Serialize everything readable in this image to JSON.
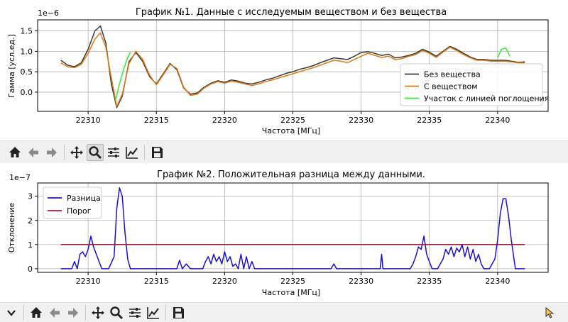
{
  "chart_data": [
    {
      "type": "line",
      "title": "График №1. Данные с исследуемым веществом и без вещества",
      "xlabel": "Частота [МГц]",
      "ylabel": "Гамма [усл.ед.]",
      "y_scale_label": "1e−6",
      "xlim": [
        22306.3,
        22343.7
      ],
      "ylim": [
        -0.47,
        1.77
      ],
      "xticks": [
        22310,
        22315,
        22320,
        22325,
        22330,
        22335,
        22340
      ],
      "yticks": [
        0.0,
        0.5,
        1.0,
        1.5
      ],
      "ytick_labels": [
        "0.0",
        "0.5",
        "1.0",
        "1.5"
      ],
      "grid": true,
      "legend_position": "lower-right",
      "series": [
        {
          "name": "Без вещества",
          "color": "#3a3a3a",
          "x": [
            22308,
            22308.5,
            22309,
            22309.5,
            22310,
            22310.5,
            22310.9,
            22311.3,
            22311.7,
            22312.1,
            22312.5,
            22313,
            22313.5,
            22314,
            22314.5,
            22315,
            22315.5,
            22316,
            22316.5,
            22317,
            22317.5,
            22318,
            22318.5,
            22319,
            22319.5,
            22320,
            22320.5,
            22321,
            22321.5,
            22322,
            22322.5,
            22323,
            22323.5,
            22324,
            22324.5,
            22325,
            22325.5,
            22326,
            22326.5,
            22327,
            22327.5,
            22328,
            22328.5,
            22329,
            22329.5,
            22330,
            22330.5,
            22331,
            22331.5,
            22332,
            22332.5,
            22333,
            22333.5,
            22334,
            22334.5,
            22335,
            22335.5,
            22336,
            22336.5,
            22337,
            22337.5,
            22338,
            22338.5,
            22339,
            22339.5,
            22340,
            22340.5,
            22341,
            22341.5,
            22342
          ],
          "y": [
            0.78,
            0.66,
            0.62,
            0.72,
            1.05,
            1.5,
            1.62,
            1.2,
            0.2,
            -0.38,
            -0.1,
            0.75,
            0.97,
            0.75,
            0.38,
            0.2,
            0.45,
            0.7,
            0.55,
            0.1,
            -0.05,
            -0.02,
            0.12,
            0.22,
            0.28,
            0.24,
            0.3,
            0.27,
            0.22,
            0.2,
            0.24,
            0.3,
            0.34,
            0.4,
            0.46,
            0.5,
            0.56,
            0.6,
            0.65,
            0.72,
            0.78,
            0.84,
            0.82,
            0.8,
            0.88,
            0.97,
            0.99,
            0.95,
            0.9,
            0.93,
            0.84,
            0.86,
            0.9,
            0.95,
            1.05,
            0.98,
            0.88,
            1.0,
            1.12,
            1.05,
            0.95,
            0.86,
            0.8,
            0.8,
            0.78,
            0.78,
            0.78,
            0.76,
            0.73,
            0.74
          ]
        },
        {
          "name": "С веществом",
          "color": "#e07a10",
          "x": [
            22308,
            22308.5,
            22309,
            22309.5,
            22310,
            22310.5,
            22310.9,
            22311.3,
            22311.7,
            22312.1,
            22312.5,
            22313,
            22313.5,
            22314,
            22314.5,
            22315,
            22315.5,
            22316,
            22316.5,
            22317,
            22317.5,
            22318,
            22318.5,
            22319,
            22319.5,
            22320,
            22320.5,
            22321,
            22321.5,
            22322,
            22322.5,
            22323,
            22323.5,
            22324,
            22324.5,
            22325,
            22325.5,
            22326,
            22326.5,
            22327,
            22327.5,
            22328,
            22328.5,
            22329,
            22329.5,
            22330,
            22330.5,
            22331,
            22331.5,
            22332,
            22332.5,
            22333,
            22333.5,
            22334,
            22334.5,
            22335,
            22335.5,
            22336,
            22336.5,
            22337,
            22337.5,
            22338,
            22338.5,
            22339,
            22339.5,
            22340,
            22340.5,
            22341,
            22341.5,
            22342
          ],
          "y": [
            0.72,
            0.62,
            0.6,
            0.68,
            0.95,
            1.3,
            1.45,
            1.1,
            0.35,
            -0.35,
            -0.05,
            0.7,
            1.0,
            0.8,
            0.42,
            0.18,
            0.42,
            0.68,
            0.58,
            0.12,
            -0.08,
            -0.05,
            0.1,
            0.2,
            0.26,
            0.22,
            0.27,
            0.24,
            0.2,
            0.16,
            0.2,
            0.26,
            0.3,
            0.35,
            0.4,
            0.45,
            0.5,
            0.55,
            0.6,
            0.66,
            0.72,
            0.78,
            0.76,
            0.72,
            0.8,
            0.88,
            0.95,
            0.9,
            0.85,
            0.88,
            0.8,
            0.82,
            0.88,
            0.92,
            1.02,
            0.95,
            0.85,
            0.98,
            1.1,
            1.02,
            0.92,
            0.84,
            0.78,
            0.78,
            0.76,
            0.76,
            0.76,
            0.74,
            0.72,
            0.72
          ]
        },
        {
          "name": "Участок с линией поглощения",
          "color": "#33ee33",
          "segments": [
            {
              "x": [
                22312.0,
                22312.3,
                22312.6,
                22312.9,
                22313.1
              ],
              "y": [
                -0.2,
                0.2,
                0.55,
                0.85,
                0.98
              ]
            },
            {
              "x": [
                22340.0,
                22340.3,
                22340.6,
                22340.9
              ],
              "y": [
                0.85,
                1.05,
                1.08,
                0.88
              ]
            }
          ]
        }
      ]
    },
    {
      "type": "line",
      "title": "График №2. Положительная разница между данными.",
      "xlabel": "Частота [МГц]",
      "ylabel": "Отклонение",
      "y_scale_label": "1e−7",
      "xlim": [
        22306.3,
        22343.7
      ],
      "ylim": [
        -0.15,
        3.55
      ],
      "xticks": [
        22310,
        22315,
        22320,
        22325,
        22330,
        22335,
        22340
      ],
      "yticks": [
        0,
        1,
        2,
        3
      ],
      "ytick_labels": [
        "0",
        "1",
        "2",
        "3"
      ],
      "grid": true,
      "legend_position": "upper-left",
      "series": [
        {
          "name": "Разница",
          "color": "#1a0fd6",
          "x": [
            22308,
            22308.4,
            22308.8,
            22309.0,
            22309.2,
            22309.4,
            22309.6,
            22309.8,
            22310.0,
            22310.2,
            22310.4,
            22310.6,
            22310.8,
            22311.0,
            22311.5,
            22311.9,
            22312.1,
            22312.3,
            22312.5,
            22312.7,
            22312.9,
            22313.1,
            22313.5,
            22314,
            22315,
            22316,
            22316.5,
            22316.7,
            22316.9,
            22317.2,
            22317.5,
            22318,
            22318.4,
            22318.6,
            22318.8,
            22319.0,
            22319.2,
            22319.4,
            22319.6,
            22319.8,
            22320.0,
            22320.2,
            22320.4,
            22320.6,
            22320.8,
            22321.0,
            22321.2,
            22321.4,
            22321.6,
            22321.8,
            22322.0,
            22322.2,
            22322.6,
            22323,
            22325,
            22327.8,
            22328,
            22328.2,
            22330,
            22331.4,
            22331.5,
            22331.6,
            22333,
            22333.6,
            22333.8,
            22334.0,
            22334.2,
            22334.4,
            22334.6,
            22334.8,
            22335.0,
            22335.2,
            22335.6,
            22336.0,
            22336.2,
            22336.4,
            22336.6,
            22336.8,
            22337.0,
            22337.2,
            22337.4,
            22337.6,
            22337.8,
            22338.0,
            22338.2,
            22338.4,
            22338.6,
            22338.8,
            22339.0,
            22339.2,
            22339.4,
            22339.6,
            22339.8,
            22340.0,
            22340.2,
            22340.4,
            22340.6,
            22340.8,
            22341.0,
            22341.3,
            22342
          ],
          "y": [
            0,
            0,
            0,
            0.3,
            0,
            0.6,
            0.7,
            0.5,
            0.8,
            1.35,
            0.9,
            0.6,
            0.3,
            0,
            0,
            0.5,
            2.5,
            3.35,
            3.0,
            1.5,
            0.4,
            0,
            0,
            0,
            0,
            0,
            0,
            0.35,
            0,
            0.2,
            0,
            0,
            0,
            0.3,
            0.5,
            0.2,
            0.6,
            0.3,
            0.5,
            0.2,
            0.7,
            0.3,
            0.5,
            0.1,
            0.2,
            0,
            0.6,
            0,
            0.5,
            0,
            0.3,
            0,
            0,
            0,
            0,
            0,
            0.2,
            0,
            0,
            0,
            0.6,
            0,
            0,
            0,
            0.2,
            0.5,
            0.9,
            0.8,
            1.35,
            0.6,
            0.3,
            0,
            0,
            0.4,
            0.8,
            0.6,
            0.9,
            0.5,
            0.85,
            0.7,
            1.0,
            0.5,
            0.9,
            0.4,
            0.8,
            0.3,
            0.6,
            0.2,
            0,
            0,
            0,
            0.2,
            0.4,
            1.2,
            2.3,
            2.9,
            2.9,
            2.2,
            1.2,
            0,
            0
          ]
        },
        {
          "name": "Порог",
          "color": "#b0142c",
          "x": [
            22308,
            22342
          ],
          "y": [
            1.0,
            1.0
          ]
        }
      ]
    }
  ],
  "toolbar": {
    "buttons": [
      {
        "name": "home-icon",
        "label": "Home"
      },
      {
        "name": "back-icon",
        "label": "Back"
      },
      {
        "name": "forward-icon",
        "label": "Forward"
      },
      {
        "name": "pan-icon",
        "label": "Pan"
      },
      {
        "name": "zoom-icon",
        "label": "Zoom"
      },
      {
        "name": "subplots-icon",
        "label": "Subplots"
      },
      {
        "name": "customize-icon",
        "label": "Customize"
      },
      {
        "name": "save-icon",
        "label": "Save"
      }
    ],
    "active": "zoom-icon"
  }
}
